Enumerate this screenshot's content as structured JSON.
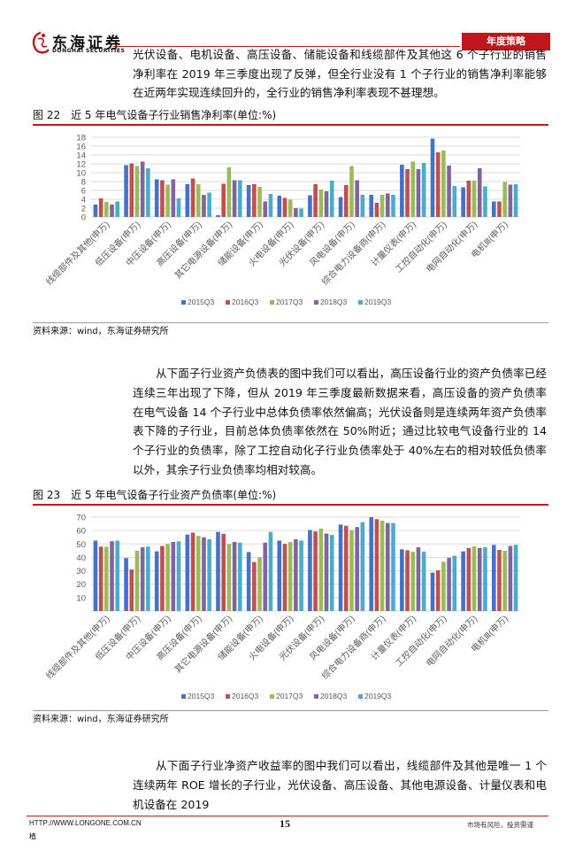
{
  "header": {
    "logo_cn": "东海证券",
    "logo_en": "DONGHAI SECURITIES",
    "tag": "年度策略",
    "brand_color": "#c0161c"
  },
  "para1": "光伏设备、电机设备、高压设备、储能设备和线缆部件及其他这 6 个子行业的销售净利率在 2019 年三季度出现了反弹，但全行业没有 1 个子行业的销售净利率能够在近两年实现连续回升的，全行业的销售净利率表现不甚理想。",
  "fig22": {
    "title": "图 22　近 5 年电气设备子行业销售净利率(单位:%)",
    "source": "资料来源：wind，东海证券研究所"
  },
  "para2": "从下面子行业资产负债表的图中我们可以看出，高压设备行业的资产负债率已经连续三年出现了下降，但从 2019 年三季度最新数据来看，高压设备的资产负债率在电气设备 14 个子行业中总体负债率依然偏高；光伏设备则是连续两年资产负债率表下降的子行业，目前总体负债率依然在 50%附近；通过比较电气设备行业的 14 个子行业的负债率，除了工控自动化子行业负债率处于 40%左右的相对较低负债率以外，其余子行业负债率均相对较高。",
  "fig23": {
    "title": "图 23　近 5 年电气设备子行业资产负债率(单位:%)",
    "source": "资料来源：wind，东海证券研究所"
  },
  "para3": "从下面子行业净资产收益率的图中我们可以看出，线缆部件及其他是唯一 1 个连续两年 ROE 增长的子行业，光伏设备、高压设备、其他电源设备、计量仪表和电机设备在 2019",
  "footer": {
    "url": "HTTP://WWW.LONGONE.COM.CN",
    "url_cont": "植",
    "page": "15",
    "risk": "市场有风险，投资需谨"
  },
  "chart_data": [
    {
      "type": "bar",
      "title": "",
      "categories": [
        "线缆部件及其他(申万)",
        "低压设备(申万)",
        "中压设备(申万)",
        "高压设备(申万)",
        "其它电源设备(申万)",
        "储能设备(申万)",
        "火电设备(申万)",
        "光伏设备(申万)",
        "风电设备(申万)",
        "综合电力设备商(申万)",
        "计量仪表(申万)",
        "工控自动化(申万)",
        "电网自动化(申万)",
        "电机Ⅲ(申万)"
      ],
      "ylim": [
        0,
        18
      ],
      "yticks": [
        0,
        2,
        4,
        6,
        8,
        10,
        12,
        14,
        16,
        18
      ],
      "grid": true,
      "legend": "bottom",
      "series": [
        {
          "name": "2015Q3",
          "color": "#4472C4",
          "values": [
            2.8,
            11.7,
            8.5,
            7.4,
            0.4,
            7.2,
            4.8,
            4.9,
            4.5,
            5.0,
            11.8,
            17.7,
            6.7,
            3.5
          ]
        },
        {
          "name": "2016Q3",
          "color": "#C0504D",
          "values": [
            4.2,
            12.1,
            8.3,
            8.7,
            7.5,
            7.4,
            4.3,
            7.4,
            7.2,
            3.2,
            10.8,
            14.6,
            8.2,
            3.5
          ]
        },
        {
          "name": "2017Q3",
          "color": "#9BBB59",
          "values": [
            3.4,
            11.5,
            7.3,
            7.4,
            11.2,
            6.8,
            3.9,
            6.2,
            11.5,
            5.0,
            12.5,
            15.0,
            8.2,
            7.9
          ]
        },
        {
          "name": "2018Q3",
          "color": "#8064A2",
          "values": [
            2.8,
            12.5,
            8.5,
            5.0,
            8.3,
            3.5,
            2.0,
            5.8,
            8.3,
            5.3,
            10.8,
            11.6,
            11.0,
            7.3
          ]
        },
        {
          "name": "2019Q3",
          "color": "#4BACC6",
          "values": [
            3.5,
            11.0,
            4.2,
            5.5,
            8.3,
            5.2,
            1.9,
            8.2,
            5.0,
            5.0,
            12.2,
            7.0,
            6.9,
            7.4
          ]
        }
      ]
    },
    {
      "type": "bar",
      "title": "",
      "categories": [
        "线缆部件及其他(申万)",
        "低压设备(申万)",
        "中压设备(申万)",
        "高压设备(申万)",
        "其它电源设备(申万)",
        "储能设备(申万)",
        "火电设备(申万)",
        "光伏设备(申万)",
        "风电设备(申万)",
        "综合电力设备商(申万)",
        "计量仪表(申万)",
        "工控自动化(申万)",
        "电网自动化(申万)",
        "电机Ⅲ(申万)"
      ],
      "ylim": [
        0,
        70
      ],
      "yticks": [
        10,
        20,
        30,
        40,
        50,
        60,
        70
      ],
      "grid": true,
      "legend": "bottom",
      "series": [
        {
          "name": "2015Q3",
          "color": "#4472C4",
          "values": [
            52.5,
            39.5,
            44.5,
            57.0,
            59.0,
            44.0,
            52.5,
            60.4,
            64.5,
            70.0,
            46.0,
            28.7,
            44.5,
            49.3
          ]
        },
        {
          "name": "2016Q3",
          "color": "#C0504D",
          "values": [
            48.0,
            31.0,
            48.5,
            58.5,
            57.5,
            36.5,
            50.0,
            59.3,
            63.6,
            68.5,
            45.3,
            30.3,
            47.0,
            45.5
          ]
        },
        {
          "name": "2017Q3",
          "color": "#9BBB59",
          "values": [
            48.0,
            45.0,
            50.0,
            56.0,
            50.0,
            40.0,
            51.5,
            61.5,
            60.4,
            67.4,
            44.2,
            36.8,
            48.2,
            44.9
          ]
        },
        {
          "name": "2018Q3",
          "color": "#8064A2",
          "values": [
            52.0,
            47.5,
            51.5,
            55.0,
            51.5,
            51.0,
            53.5,
            57.8,
            62.6,
            65.6,
            47.5,
            39.7,
            47.0,
            48.6
          ]
        },
        {
          "name": "2019Q3",
          "color": "#4BACC6",
          "values": [
            52.5,
            48.0,
            52.0,
            53.5,
            51.0,
            59.0,
            52.5,
            56.7,
            66.3,
            65.6,
            44.2,
            41.2,
            47.5,
            49.3
          ]
        }
      ]
    }
  ]
}
